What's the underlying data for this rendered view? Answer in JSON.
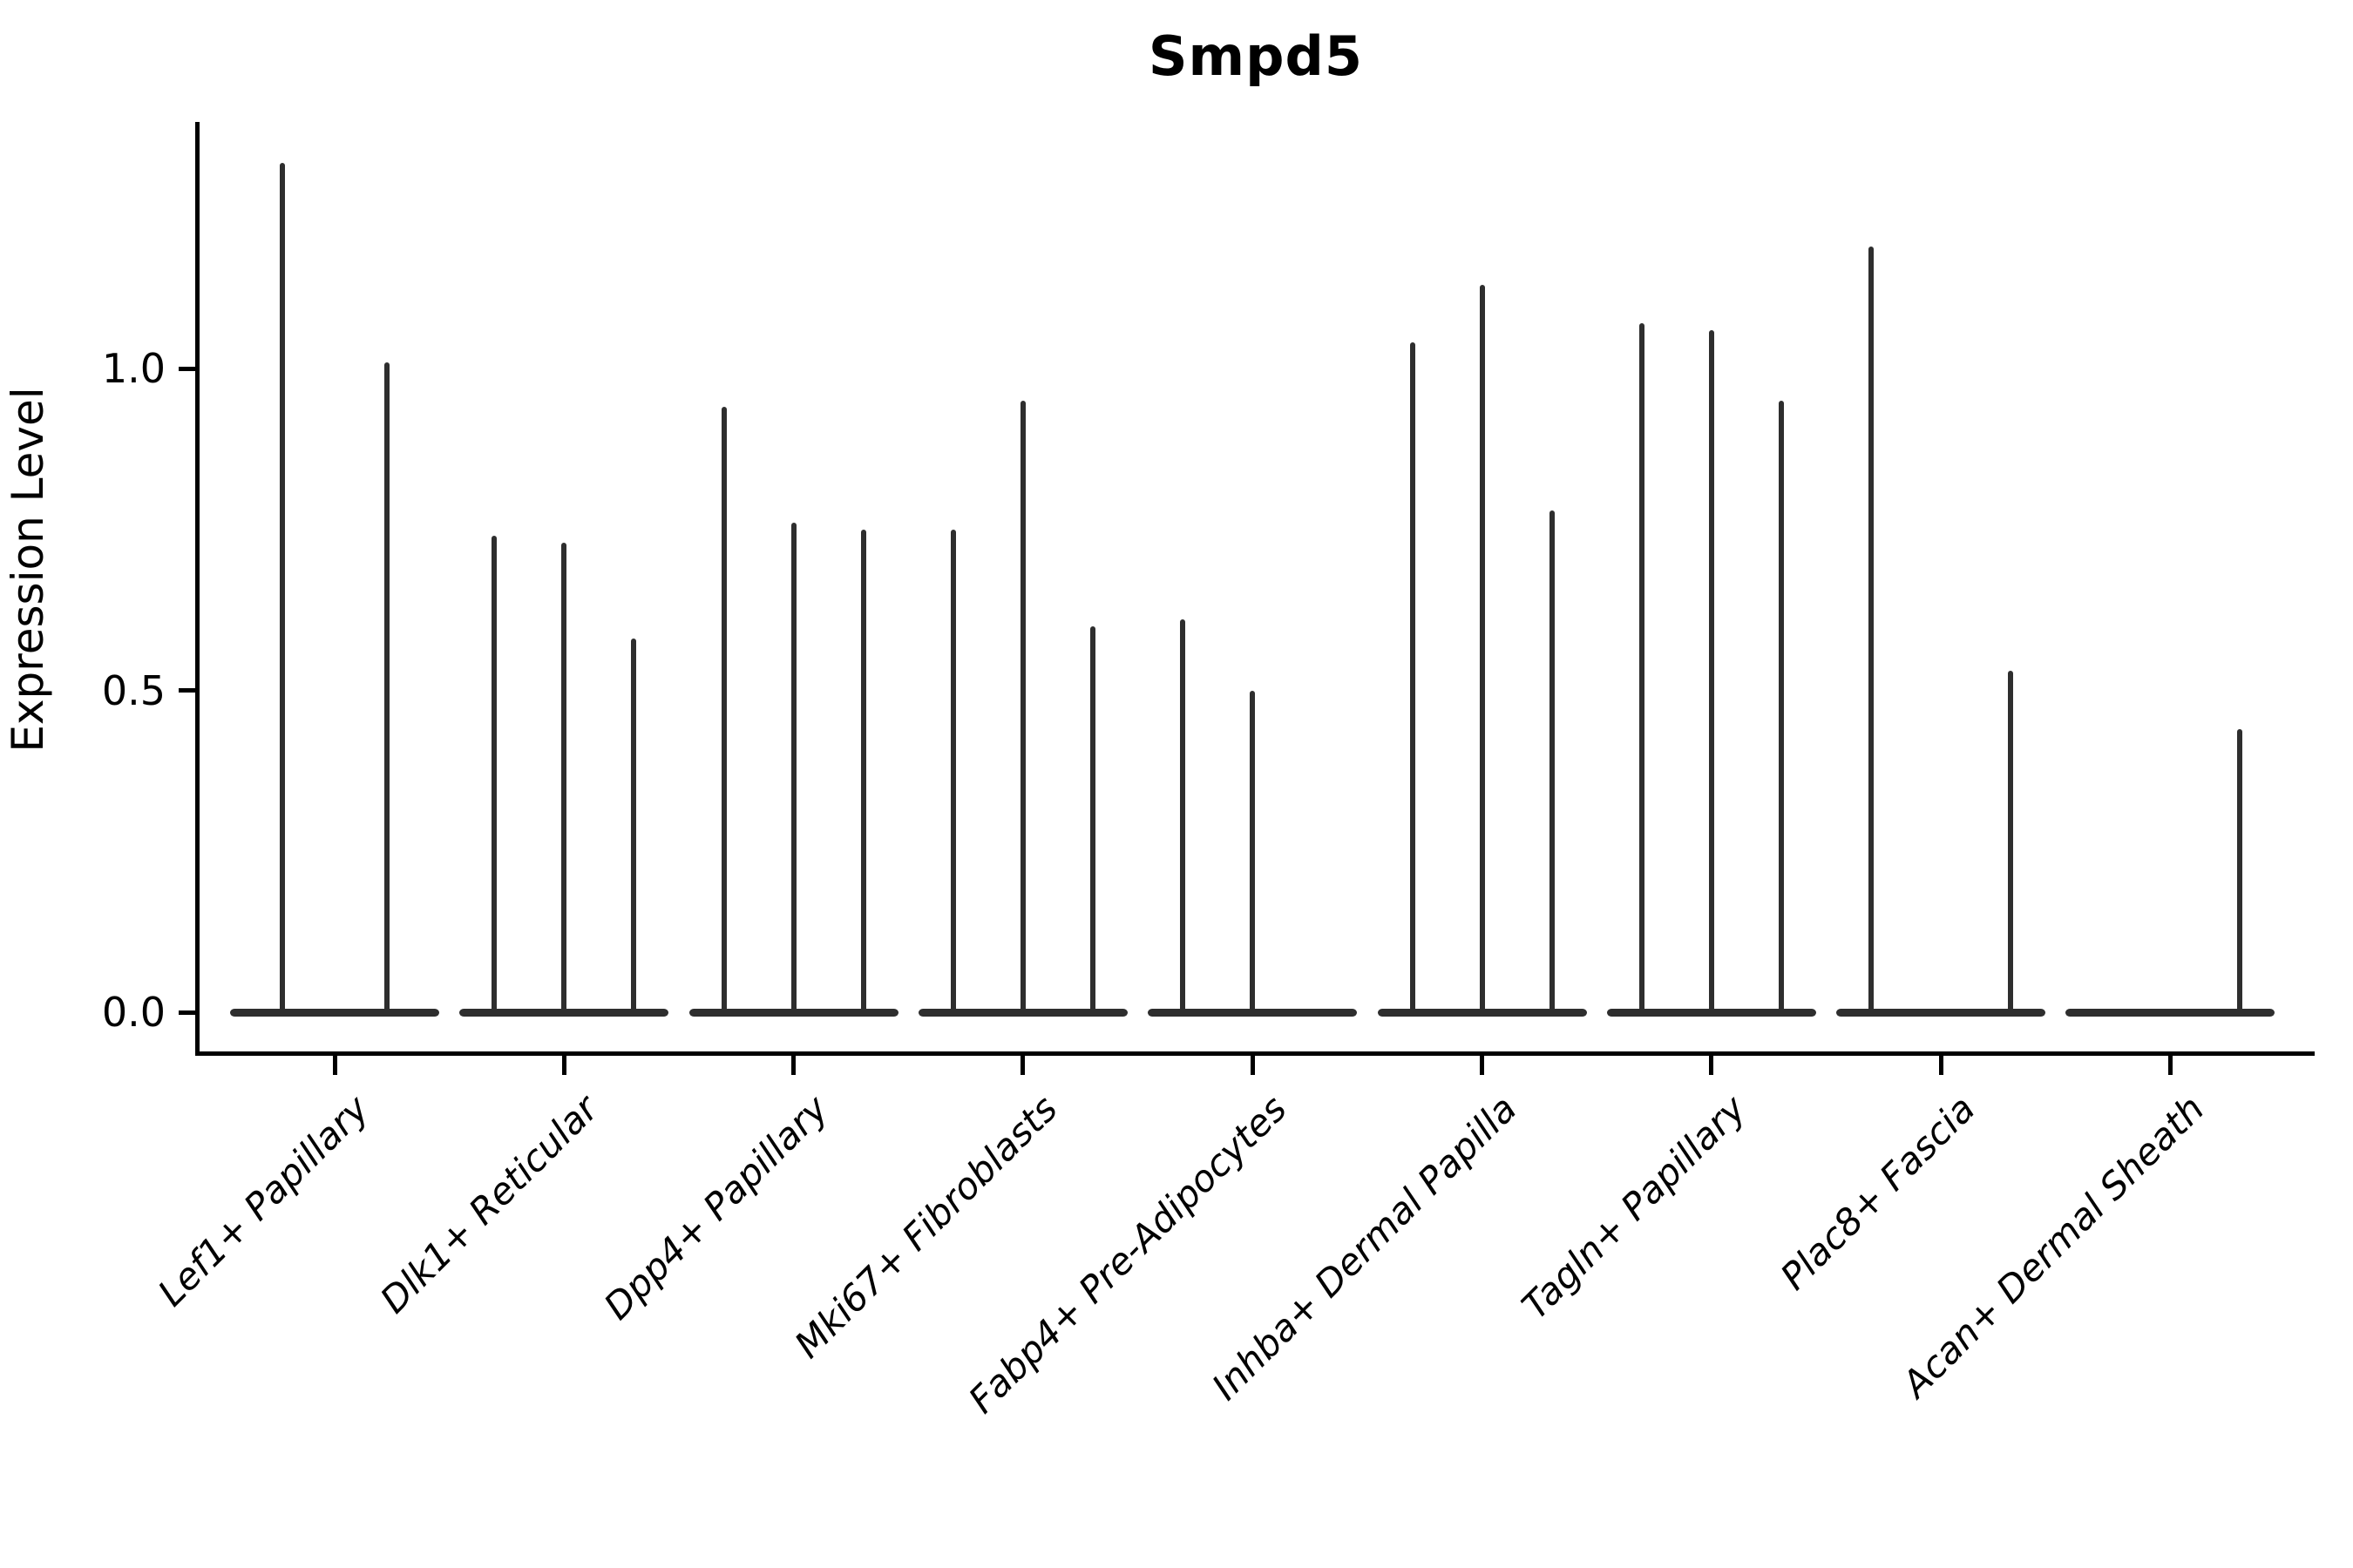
{
  "chart_data": {
    "type": "violin",
    "title": "Smpd5",
    "ylabel": "Expression Level",
    "xlabel": "",
    "ytick_labels": [
      "0.0",
      "0.5",
      "1.0"
    ],
    "ytick_values": [
      0.0,
      0.5,
      1.0
    ],
    "ylim": [
      0,
      1.38
    ],
    "grid": false,
    "legend": "none",
    "style_note": "violin plot; each cell-type group holds 2-3 dodged violins that are flat pancakes at 0 with a thin spike rising to the max expression value; spike value 0 means the violin is flat (no spike)",
    "categories": [
      "Lef1+ Papillary",
      "Dlk1+ Reticular",
      "Dpp4+ Papillary",
      "Mki67+ Fibroblasts",
      "Fabp4+ Pre-Adipocytes",
      "Inhba+ Dermal Papilla",
      "Tagln+ Papillary",
      "Plac8+ Fascia",
      "Acan+ Dermal Sheath"
    ],
    "spike_heights_per_group": [
      [
        1.32,
        1.01
      ],
      [
        0.74,
        0.73,
        0.58
      ],
      [
        0.94,
        0.76,
        0.75
      ],
      [
        0.75,
        0.95,
        0.6
      ],
      [
        0.61,
        0.5,
        0
      ],
      [
        1.04,
        1.13,
        0.78
      ],
      [
        1.07,
        1.06,
        0.95
      ],
      [
        1.19,
        0,
        0.53
      ],
      [
        0,
        0,
        0.44
      ]
    ],
    "violin_color": "#2e2e2e",
    "axis_color": "#000000",
    "background_color": "#ffffff"
  }
}
